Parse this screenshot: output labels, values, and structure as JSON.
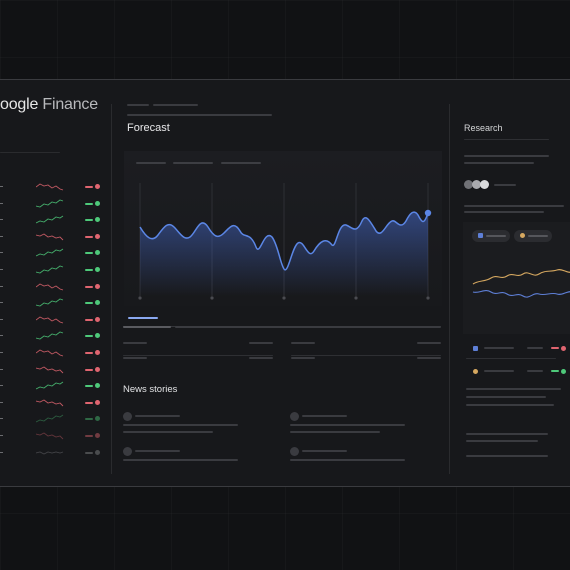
{
  "app": {
    "brand_bold": "oogle",
    "brand_light": " Finance"
  },
  "main": {
    "forecast_title": "Forecast",
    "news_title": "News stories",
    "research_title": "Research"
  },
  "colors": {
    "up": "#4ec97a",
    "down": "#e06570",
    "accent": "#5b86e5",
    "orange": "#d6a860",
    "blue_series": "#5e7fd6"
  },
  "watchlist": {
    "rows": [
      {
        "trend": "down"
      },
      {
        "trend": "up"
      },
      {
        "trend": "up"
      },
      {
        "trend": "down"
      },
      {
        "trend": "up"
      },
      {
        "trend": "up"
      },
      {
        "trend": "down"
      },
      {
        "trend": "up"
      },
      {
        "trend": "down"
      },
      {
        "trend": "up"
      },
      {
        "trend": "down"
      },
      {
        "trend": "down"
      },
      {
        "trend": "up"
      },
      {
        "trend": "down"
      },
      {
        "trend": "up"
      },
      {
        "trend": "down"
      },
      {
        "trend": "neutral"
      }
    ]
  },
  "icons": {
    "research_avatars": [
      "avatar-gray-icon",
      "avatar-light-icon",
      "avatar-white-icon"
    ]
  }
}
